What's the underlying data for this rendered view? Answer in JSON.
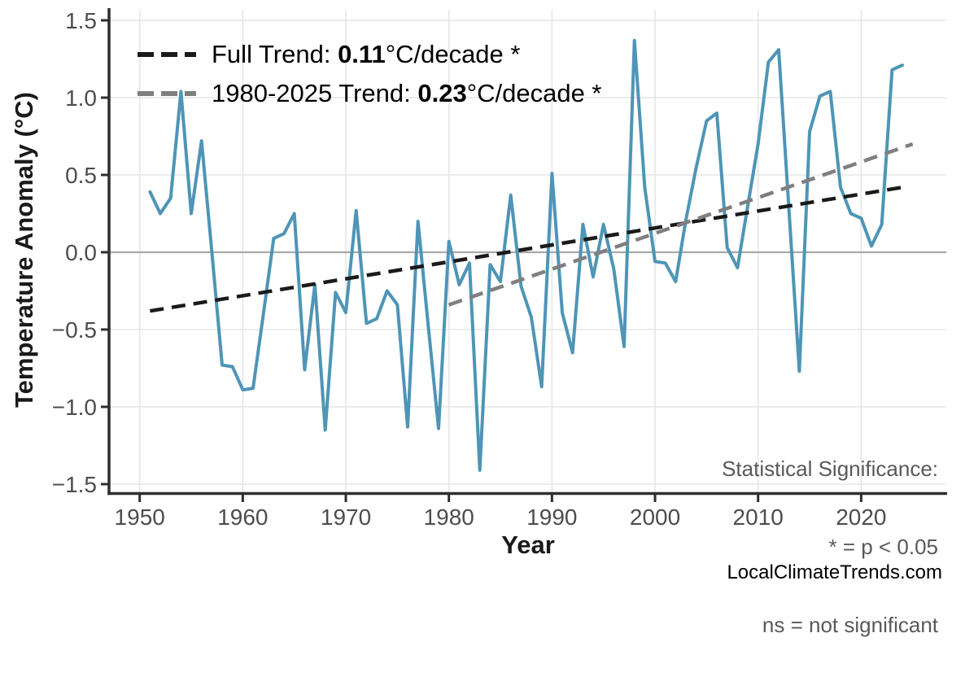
{
  "chart": {
    "y_axis_label": "Temperature Anomaly (°C)",
    "x_axis_label": "Year",
    "legend": {
      "items": [
        {
          "name": "full-trend",
          "prefix": "Full Trend: ",
          "value": "0.11",
          "suffix": "°C/decade *",
          "color": "#1a1a1a"
        },
        {
          "name": "recent-trend",
          "prefix": "1980-2025 Trend: ",
          "value": "0.23",
          "suffix": "°C/decade *",
          "color": "#7f7f7f"
        }
      ]
    },
    "annotation": {
      "line1": "Statistical Significance:",
      "line2": "* = p < 0.05",
      "line3": "ns = not significant"
    }
  },
  "chart_data": {
    "type": "line",
    "title": "",
    "xlabel": "Year",
    "ylabel": "Temperature Anomaly (°C)",
    "grid": true,
    "legend_position": "upper left",
    "xlim": [
      1947,
      2028.5
    ],
    "ylim": [
      -1.55,
      1.57
    ],
    "x_ticks": [
      1950,
      1960,
      1970,
      1980,
      1990,
      2000,
      2010,
      2020
    ],
    "x_tick_labels": [
      "1950",
      "1960",
      "1970",
      "1980",
      "1990",
      "2000",
      "2010",
      "2020"
    ],
    "y_ticks": [
      -1.5,
      -1.0,
      -0.5,
      0.0,
      0.5,
      1.0,
      1.5
    ],
    "y_tick_labels": [
      "−1.5",
      "−1.0",
      "−0.5",
      "0.0",
      "0.5",
      "1.0",
      "1.5"
    ],
    "x": [
      1951,
      1952,
      1953,
      1954,
      1955,
      1956,
      1957,
      1958,
      1959,
      1960,
      1961,
      1962,
      1963,
      1964,
      1965,
      1966,
      1967,
      1968,
      1969,
      1970,
      1971,
      1972,
      1973,
      1974,
      1975,
      1976,
      1977,
      1978,
      1979,
      1980,
      1981,
      1982,
      1983,
      1984,
      1985,
      1986,
      1987,
      1988,
      1989,
      1990,
      1991,
      1992,
      1993,
      1994,
      1995,
      1996,
      1997,
      1998,
      1999,
      2000,
      2001,
      2002,
      2003,
      2004,
      2005,
      2006,
      2007,
      2008,
      2009,
      2010,
      2011,
      2012,
      2013,
      2014,
      2015,
      2016,
      2017,
      2018,
      2019,
      2020,
      2021,
      2022,
      2023,
      2024
    ],
    "series": [
      {
        "name": "annual-temperature-anomaly",
        "color": "#4e95b6",
        "values": [
          0.39,
          0.25,
          0.35,
          1.04,
          0.25,
          0.72,
          0.0,
          -0.73,
          -0.74,
          -0.89,
          -0.88,
          -0.4,
          0.09,
          0.12,
          0.25,
          -0.76,
          -0.21,
          -1.15,
          -0.26,
          -0.39,
          0.27,
          -0.46,
          -0.43,
          -0.25,
          -0.34,
          -1.13,
          0.2,
          -0.48,
          -1.14,
          0.07,
          -0.21,
          -0.07,
          -1.41,
          -0.08,
          -0.19,
          0.37,
          -0.22,
          -0.42,
          -0.87,
          0.51,
          -0.39,
          -0.65,
          0.18,
          -0.16,
          0.18,
          -0.11,
          -0.61,
          1.37,
          0.42,
          -0.06,
          -0.07,
          -0.19,
          0.21,
          0.55,
          0.85,
          0.9,
          0.03,
          -0.1,
          0.3,
          0.7,
          1.23,
          1.31,
          0.27,
          -0.77,
          0.78,
          1.01,
          1.04,
          0.42,
          0.25,
          0.22,
          0.04,
          0.18,
          1.18,
          1.21
        ]
      }
    ],
    "trend_lines": [
      {
        "name": "full-trend",
        "label": "Full Trend",
        "rate": "0.11°C/decade",
        "significance": "*",
        "style": "dashed",
        "color": "#1a1a1a",
        "x0": 1951,
        "y0": -0.38,
        "x1": 2024,
        "y1": 0.42
      },
      {
        "name": "1980-2025-trend",
        "label": "1980-2025 Trend",
        "rate": "0.23°C/decade",
        "significance": "*",
        "style": "dashed",
        "color": "#7f7f7f",
        "x0": 1980,
        "y0": -0.34,
        "x1": 2025,
        "y1": 0.7
      }
    ],
    "colors": {
      "grid": "#e6e6e6",
      "zero_line": "#aaaaaa",
      "axis": "#2e2e2e",
      "tick_label": "#4d4d4d"
    }
  },
  "footer": {
    "watermark": "LocalClimateTrends.com"
  }
}
